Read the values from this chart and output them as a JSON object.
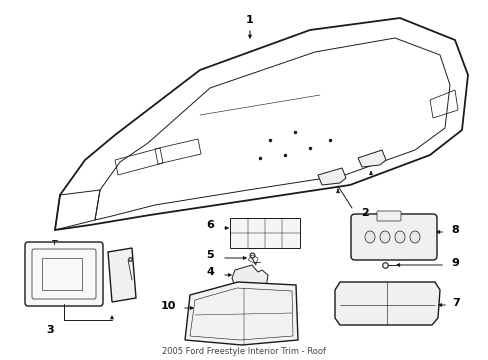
{
  "bg_color": "#ffffff",
  "line_color": "#1a1a1a",
  "figsize": [
    4.89,
    3.6
  ],
  "dpi": 100,
  "caption": "2005 Ford Freestyle Interior Trim - Roof"
}
